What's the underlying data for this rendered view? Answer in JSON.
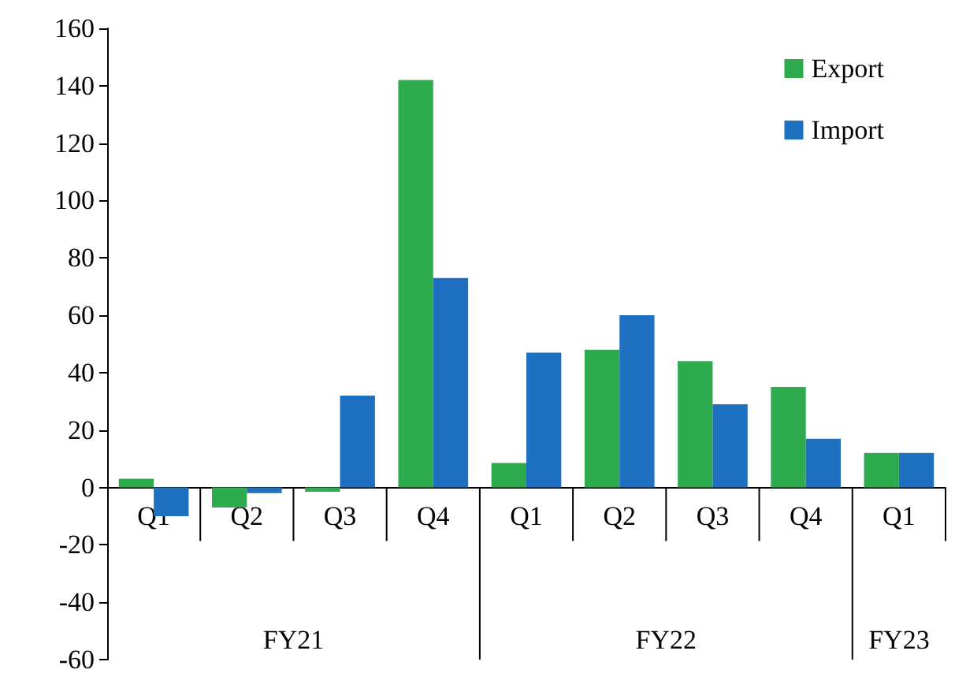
{
  "chart_data": {
    "type": "bar",
    "categories": [
      "Q1",
      "Q2",
      "Q3",
      "Q4",
      "Q1",
      "Q2",
      "Q3",
      "Q4",
      "Q1"
    ],
    "series": [
      {
        "name": "Export",
        "color": "#2eab4f",
        "values": [
          3,
          -7,
          -1.5,
          142,
          8.5,
          48,
          44,
          35,
          12
        ]
      },
      {
        "name": "Import",
        "color": "#1f70c1",
        "values": [
          -10,
          -2,
          32,
          73,
          47,
          60,
          29,
          17,
          12
        ]
      }
    ],
    "annotations": [
      "FY21",
      "FY22",
      "FY23"
    ],
    "ylim": [
      -60,
      160
    ],
    "yticks": [
      -60,
      -40,
      -20,
      0,
      20,
      40,
      60,
      80,
      100,
      120,
      140,
      160
    ],
    "grid": false,
    "legend": "top right"
  }
}
